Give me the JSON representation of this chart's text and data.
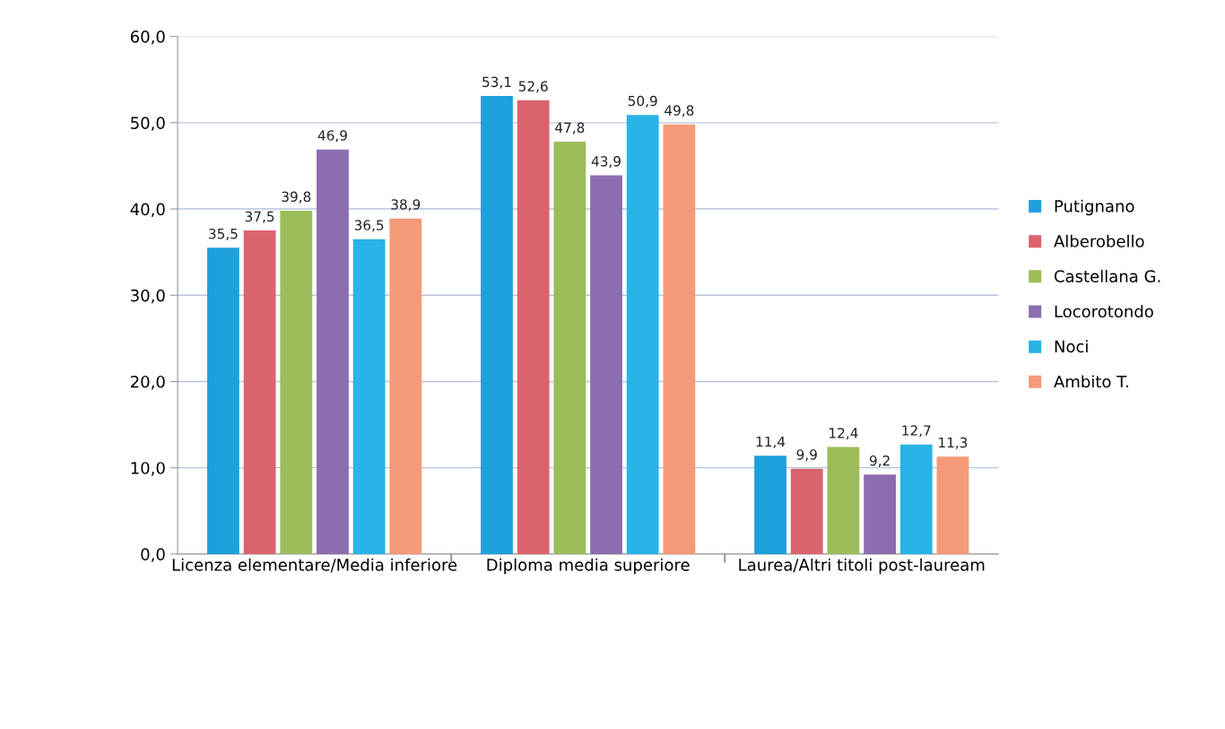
{
  "chart_data": {
    "type": "bar",
    "categories": [
      "Licenza elementare/Media inferiore",
      "Diploma media superiore",
      "Laurea/Altri titoli post-lauream"
    ],
    "series": [
      {
        "name": "Putignano",
        "color": "#1ea0dc",
        "values": [
          35.5,
          53.1,
          11.4
        ],
        "value_labels": [
          "35,5",
          "53,1",
          "11,4"
        ]
      },
      {
        "name": "Alberobello",
        "color": "#d9646e",
        "values": [
          37.5,
          52.6,
          9.9
        ],
        "value_labels": [
          "37,5",
          "52,6",
          "9,9"
        ]
      },
      {
        "name": "Castellana G.",
        "color": "#9cbc5a",
        "values": [
          39.8,
          47.8,
          12.4
        ],
        "value_labels": [
          "39,8",
          "47,8",
          "12,4"
        ]
      },
      {
        "name": "Locorotondo",
        "color": "#8c6eb0",
        "values": [
          46.9,
          43.9,
          9.2
        ],
        "value_labels": [
          "46,9",
          "43,9",
          "9,2"
        ]
      },
      {
        "name": "Noci",
        "color": "#28b4e6",
        "values": [
          36.5,
          50.9,
          12.7
        ],
        "value_labels": [
          "36,5",
          "50,9",
          "12,7"
        ]
      },
      {
        "name": "Ambito T.",
        "color": "#f59a78",
        "values": [
          38.9,
          49.8,
          11.3
        ],
        "value_labels": [
          "38,9",
          "49,8",
          "11,3"
        ]
      }
    ],
    "ylim": [
      0,
      60
    ],
    "yticks": [
      {
        "value": 0,
        "label": "0,0"
      },
      {
        "value": 10,
        "label": "10,0"
      },
      {
        "value": 20,
        "label": "20,0"
      },
      {
        "value": 30,
        "label": "30,0"
      },
      {
        "value": 40,
        "label": "40,0"
      },
      {
        "value": 50,
        "label": "50,0"
      },
      {
        "value": 60,
        "label": "60,0"
      }
    ],
    "grid": "y",
    "legend": "right"
  }
}
